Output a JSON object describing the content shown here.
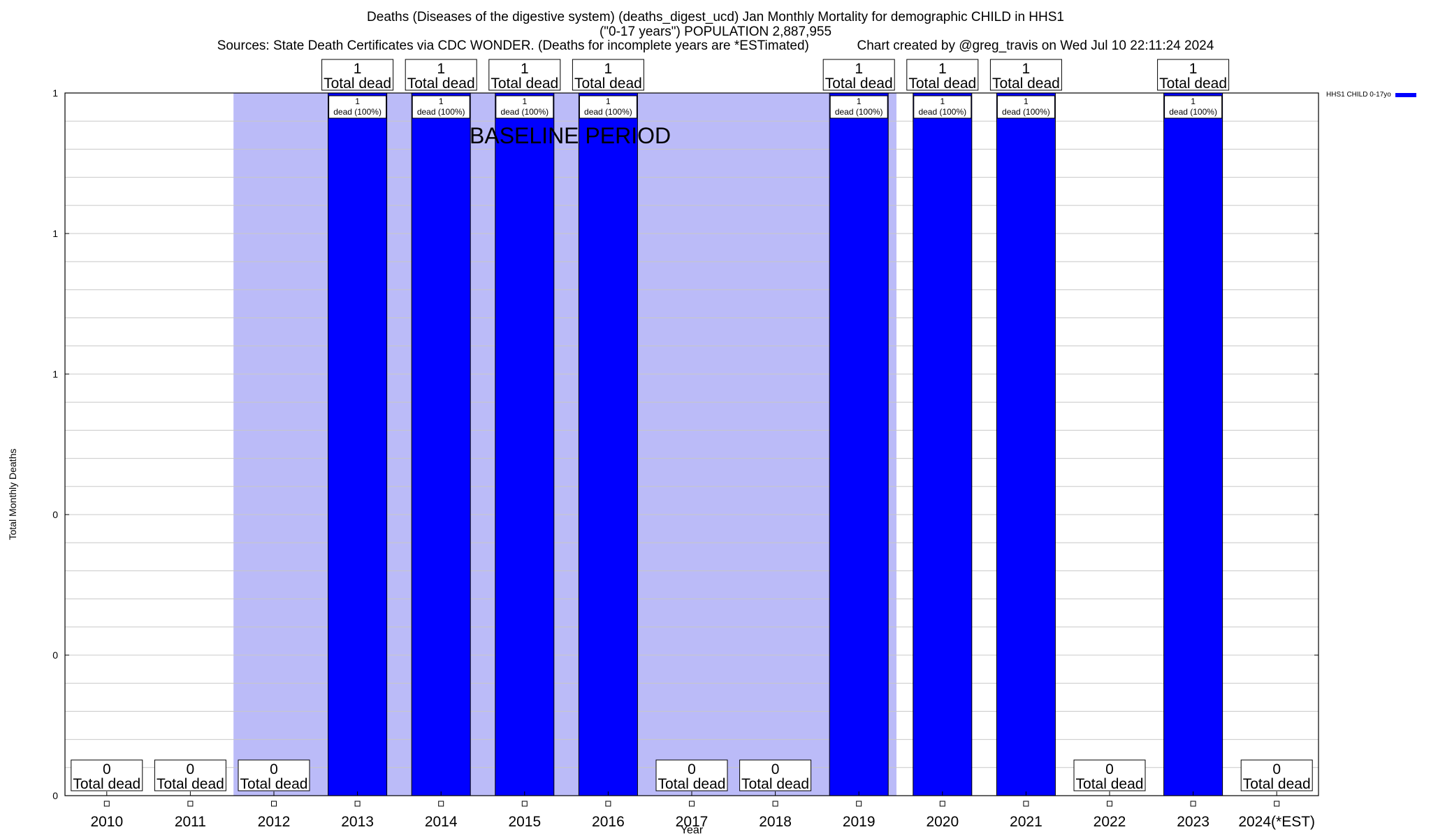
{
  "header": {
    "line1": "Deaths (Diseases of the digestive system) (deaths_digest_ucd) Jan Monthly Mortality for demographic CHILD in HHS1",
    "line2": "(\"0-17 years\") POPULATION 2,887,955",
    "line3": "Sources: State Death Certificates via CDC WONDER. (Deaths for incomplete years are *ESTimated)             Chart created by @greg_travis on Wed Jul 10 22:11:24 2024"
  },
  "chart_data": {
    "type": "bar",
    "xlabel": "Year",
    "ylabel": "Total Monthly Deaths",
    "ylim": [
      0,
      1
    ],
    "ytick_labels": [
      "0",
      "0",
      "0",
      "1",
      "1",
      "1"
    ],
    "categories": [
      "2010",
      "2011",
      "2012",
      "2013",
      "2014",
      "2015",
      "2016",
      "2017",
      "2018",
      "2019",
      "2020",
      "2021",
      "2022",
      "2023",
      "2024(*EST)"
    ],
    "series": [
      {
        "name": "HHS1 CHILD 0-17yo",
        "color": "#0000ff",
        "values": [
          0,
          0,
          0,
          1,
          1,
          1,
          1,
          0,
          0,
          1,
          1,
          1,
          0,
          1,
          0
        ]
      }
    ],
    "top_labels": [
      "0",
      "0",
      "0",
      "1",
      "1",
      "1",
      "1",
      "0",
      "0",
      "1",
      "1",
      "1",
      "0",
      "1",
      "0"
    ],
    "top_label_suffix": "Total dead",
    "bar_labels": [
      "1",
      "1",
      "1",
      "1",
      "1",
      "1",
      "1",
      "1"
    ],
    "bar_label_suffix": "dead (100%)",
    "baseline_period": {
      "label": "BASELINE PERIOD",
      "from": "2012",
      "to": "2019",
      "color": "#bbbbf8"
    },
    "grid": true,
    "legend_position": "top-right"
  }
}
